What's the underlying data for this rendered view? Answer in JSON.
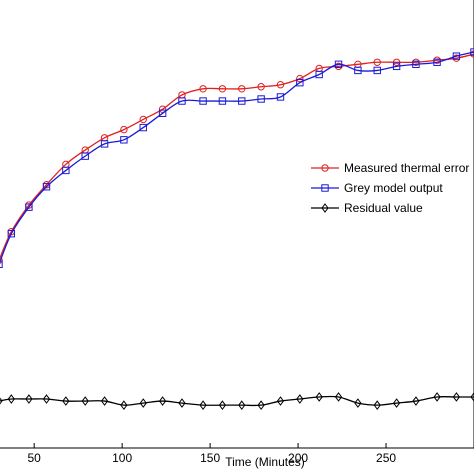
{
  "chart_data": {
    "type": "line",
    "xlabel": "Time (Minutes)",
    "ylabel": "",
    "xlim": [
      30,
      300
    ],
    "ylim": [
      -2,
      20
    ],
    "x_ticks": [
      50,
      100,
      150,
      200,
      250
    ],
    "grid": false,
    "legend_position": "right-center",
    "series": [
      {
        "name": "Measured thermal error",
        "color": "#e02020",
        "marker": "circle",
        "x": [
          30,
          37,
          47,
          57,
          68,
          79,
          90,
          101,
          112,
          123,
          134,
          146,
          157,
          168,
          179,
          190,
          201,
          212,
          223,
          234,
          245,
          256,
          267,
          279,
          290,
          300
        ],
        "y": [
          7.2,
          8.6,
          9.9,
          10.9,
          11.9,
          12.6,
          13.2,
          13.6,
          14.1,
          14.6,
          15.3,
          15.6,
          15.6,
          15.6,
          15.7,
          15.8,
          16.1,
          16.6,
          16.7,
          16.8,
          16.9,
          16.9,
          16.9,
          17.0,
          17.1,
          17.3
        ]
      },
      {
        "name": "Grey model output",
        "color": "#1b1bd6",
        "marker": "square",
        "x": [
          30,
          37,
          47,
          57,
          68,
          79,
          90,
          101,
          112,
          123,
          134,
          146,
          157,
          168,
          179,
          190,
          201,
          212,
          223,
          234,
          245,
          256,
          267,
          279,
          290,
          300
        ],
        "y": [
          7.0,
          8.5,
          9.8,
          10.8,
          11.6,
          12.3,
          12.9,
          13.1,
          13.7,
          14.4,
          15.0,
          15.0,
          15.0,
          15.0,
          15.1,
          15.2,
          15.9,
          16.3,
          16.8,
          16.5,
          16.5,
          16.7,
          16.8,
          16.9,
          17.2,
          17.4
        ]
      },
      {
        "name": "Residual value",
        "color": "#000000",
        "marker": "diamond",
        "x": [
          30,
          37,
          47,
          57,
          68,
          79,
          90,
          101,
          112,
          123,
          134,
          146,
          157,
          168,
          179,
          190,
          201,
          212,
          223,
          234,
          245,
          256,
          267,
          279,
          290,
          300
        ],
        "y": [
          0.3,
          0.4,
          0.4,
          0.4,
          0.3,
          0.3,
          0.3,
          0.1,
          0.2,
          0.3,
          0.2,
          0.1,
          0.1,
          0.1,
          0.1,
          0.3,
          0.4,
          0.5,
          0.5,
          0.2,
          0.1,
          0.2,
          0.3,
          0.5,
          0.5,
          0.5
        ]
      }
    ]
  }
}
